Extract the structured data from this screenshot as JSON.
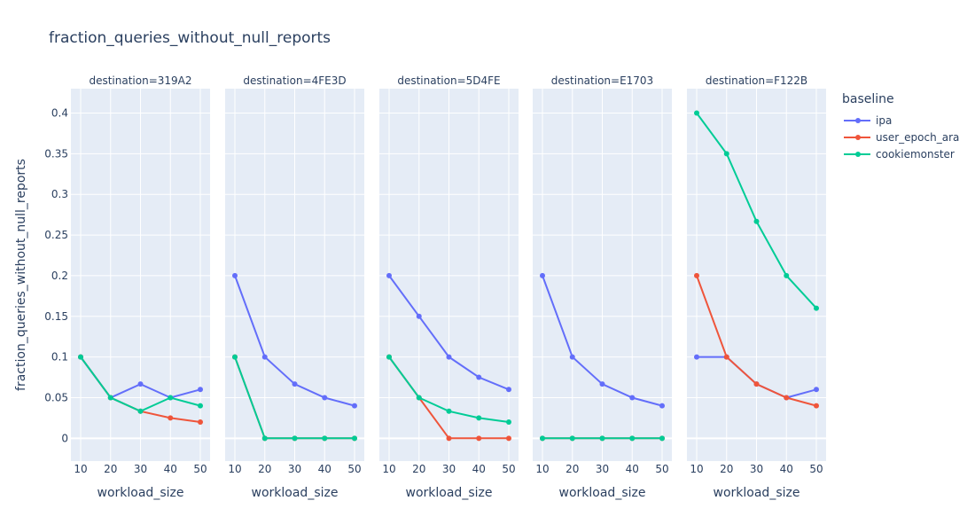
{
  "chart_data": {
    "type": "line",
    "title": "fraction_queries_without_null_reports",
    "xlabel": "workload_size",
    "ylabel": "fraction_queries_without_null_reports",
    "x": [
      10,
      20,
      30,
      40,
      50
    ],
    "xticks": [
      "10",
      "20",
      "30",
      "40",
      "50"
    ],
    "ylim": [
      -0.028,
      0.43
    ],
    "yticks": [
      0,
      0.05,
      0.1,
      0.15,
      0.2,
      0.25,
      0.3,
      0.35,
      0.4
    ],
    "ytick_labels": [
      "0",
      "0.05",
      "0.1",
      "0.15",
      "0.2",
      "0.25",
      "0.3",
      "0.35",
      "0.4"
    ],
    "grid": true,
    "legend": {
      "title": "baseline",
      "placement": "right",
      "entries": [
        {
          "name": "ipa",
          "color": "#636efa"
        },
        {
          "name": "user_epoch_ara",
          "color": "#ef553b"
        },
        {
          "name": "cookiemonster",
          "color": "#00cc96"
        }
      ]
    },
    "facets": [
      {
        "label": "destination=319A2",
        "series": [
          {
            "name": "ipa",
            "values": [
              0.1,
              0.05,
              0.0667,
              0.05,
              0.06
            ]
          },
          {
            "name": "user_epoch_ara",
            "values": [
              0.1,
              0.05,
              0.0333,
              0.025,
              0.02
            ]
          },
          {
            "name": "cookiemonster",
            "values": [
              0.1,
              0.05,
              0.0333,
              0.05,
              0.04
            ]
          }
        ]
      },
      {
        "label": "destination=4FE3D",
        "series": [
          {
            "name": "ipa",
            "values": [
              0.2,
              0.1,
              0.0667,
              0.05,
              0.04
            ]
          },
          {
            "name": "user_epoch_ara",
            "values": [
              0.1,
              0,
              0,
              0,
              0
            ]
          },
          {
            "name": "cookiemonster",
            "values": [
              0.1,
              0,
              0,
              0,
              0
            ]
          }
        ]
      },
      {
        "label": "destination=5D4FE",
        "series": [
          {
            "name": "ipa",
            "values": [
              0.2,
              0.15,
              0.1,
              0.075,
              0.06
            ]
          },
          {
            "name": "user_epoch_ara",
            "values": [
              0.1,
              0.05,
              0,
              0,
              0
            ]
          },
          {
            "name": "cookiemonster",
            "values": [
              0.1,
              0.05,
              0.0333,
              0.025,
              0.02
            ]
          }
        ]
      },
      {
        "label": "destination=E1703",
        "series": [
          {
            "name": "ipa",
            "values": [
              0.2,
              0.1,
              0.0667,
              0.05,
              0.04
            ]
          },
          {
            "name": "user_epoch_ara",
            "values": [
              0,
              0,
              0,
              0,
              0
            ]
          },
          {
            "name": "cookiemonster",
            "values": [
              0,
              0,
              0,
              0,
              0
            ]
          }
        ]
      },
      {
        "label": "destination=F122B",
        "series": [
          {
            "name": "ipa",
            "values": [
              0.1,
              0.1,
              0.0667,
              0.05,
              0.06
            ]
          },
          {
            "name": "user_epoch_ara",
            "values": [
              0.2,
              0.1,
              0.0667,
              0.05,
              0.04
            ]
          },
          {
            "name": "cookiemonster",
            "values": [
              0.4,
              0.35,
              0.2667,
              0.2,
              0.16
            ]
          }
        ]
      }
    ]
  }
}
